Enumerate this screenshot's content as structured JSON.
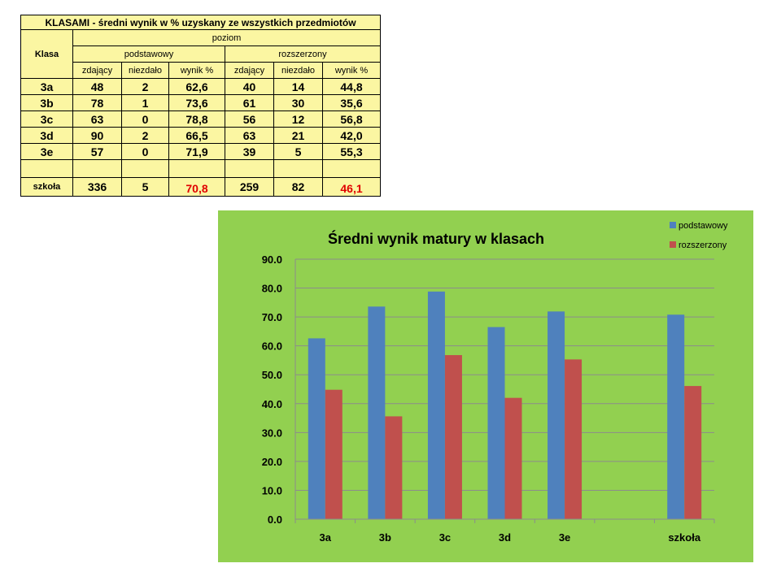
{
  "table": {
    "title": "KLASAMI - średni wynik w % uzyskany ze  wszystkich przedmiotów",
    "col_class": "Klasa",
    "col_level": "poziom",
    "level_basic": "podstawowy",
    "level_ext": "rozszerzony",
    "sub_headers": [
      "zdający",
      "niezdało",
      "wynik %",
      "zdający",
      "niezdało",
      "wynik %"
    ],
    "rows": [
      [
        "3a",
        "48",
        "2",
        "62,6",
        "40",
        "14",
        "44,8"
      ],
      [
        "3b",
        "78",
        "1",
        "73,6",
        "61",
        "30",
        "35,6"
      ],
      [
        "3c",
        "63",
        "0",
        "78,8",
        "56",
        "12",
        "56,8"
      ],
      [
        "3d",
        "90",
        "2",
        "66,5",
        "63",
        "21",
        "42,0"
      ],
      [
        "3e",
        "57",
        "0",
        "71,9",
        "39",
        "5",
        "55,3"
      ]
    ],
    "school_row": [
      "szkoła",
      "336",
      "5",
      "70,8",
      "259",
      "82",
      "46,1"
    ],
    "school_highlight_color": "#e00000"
  },
  "chart_data": {
    "type": "bar",
    "title": "Średni wynik matury w klasach",
    "categories": [
      "3a",
      "3b",
      "3c",
      "3d",
      "3e",
      "",
      "szkoła"
    ],
    "series": [
      {
        "name": "podstawowy",
        "color": "#4f81bd",
        "values": [
          62.6,
          73.6,
          78.8,
          66.5,
          71.9,
          null,
          70.8
        ]
      },
      {
        "name": "rozszerzony",
        "color": "#c0504d",
        "values": [
          44.8,
          35.6,
          56.8,
          42.0,
          55.3,
          null,
          46.1
        ]
      }
    ],
    "ylim": [
      0,
      90
    ],
    "yticks": [
      "0.0",
      "10.0",
      "20.0",
      "30.0",
      "40.0",
      "50.0",
      "60.0",
      "70.0",
      "80.0",
      "90.0"
    ],
    "grid": true,
    "legend_position": "top-right",
    "background": "#92d050"
  }
}
